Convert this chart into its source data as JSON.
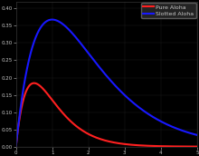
{
  "background_color": "#000000",
  "axes_color": "#000000",
  "pure_aloha_color": "#ff2020",
  "slotted_aloha_color": "#1818ff",
  "legend_labels": [
    "Pure Aloha",
    "Slotted Aloha"
  ],
  "legend_facecolor": "#2a2a2a",
  "legend_edgecolor": "#666666",
  "text_color": "#cccccc",
  "grid_color": "#2a2a2a",
  "linewidth": 1.5,
  "g_max": 5.0,
  "figsize": [
    2.2,
    1.72
  ],
  "dpi": 100,
  "tick_labelsize": 4.0
}
